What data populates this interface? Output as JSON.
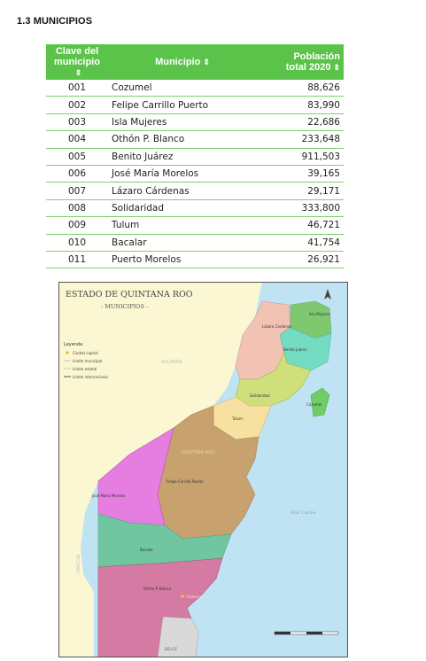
{
  "heading": "1.3 MUNICIPIOS",
  "table": {
    "headers": {
      "clave_line1": "Clave del",
      "clave_line2": "municipio",
      "municipio": "Municipio",
      "poblacion_line1": "Población",
      "poblacion_line2": "total 2020"
    },
    "sort_icon": "sort-icon",
    "rows": [
      {
        "clave": "001",
        "municipio": "Cozumel",
        "poblacion": "88,626"
      },
      {
        "clave": "002",
        "municipio": "Felipe Carrillo Puerto",
        "poblacion": "83,990"
      },
      {
        "clave": "003",
        "municipio": "Isla Mujeres",
        "poblacion": "22,686"
      },
      {
        "clave": "004",
        "municipio": "Othón P. Blanco",
        "poblacion": "233,648"
      },
      {
        "clave": "005",
        "municipio": "Benito Juárez",
        "poblacion": "911,503"
      },
      {
        "clave": "006",
        "municipio": "José María Morelos",
        "poblacion": "39,165"
      },
      {
        "clave": "007",
        "municipio": "Lázaro Cárdenas",
        "poblacion": "29,171"
      },
      {
        "clave": "008",
        "municipio": "Solidaridad",
        "poblacion": "333,800"
      },
      {
        "clave": "009",
        "municipio": "Tulum",
        "poblacion": "46,721"
      },
      {
        "clave": "010",
        "municipio": "Bacalar",
        "poblacion": "41,754"
      },
      {
        "clave": "011",
        "municipio": "Puerto Morelos",
        "poblacion": "26,921"
      }
    ]
  },
  "map": {
    "title": "ESTADO DE QUINTANA ROO",
    "subtitle": "- MUNICIPIOS -",
    "legend": {
      "title": "Leyenda",
      "items": [
        "Ciudad capital",
        "Límite municipal",
        "Límite estatal",
        "Límite internacional"
      ]
    },
    "labels": {
      "isla_mujeres": "Isla Mujeres",
      "lazaro": "Lázaro Cárdenas",
      "benito": "Benito Juárez",
      "yucatan": "YUCATÁN",
      "solidaridad": "Solidaridad",
      "cozumel": "Cozumel",
      "tulum": "Tulum",
      "quintana": "QUINTANA ROO",
      "felipe": "Felipe Carrillo Puerto",
      "jose": "José María Morelos",
      "mar": "Mar Caribe",
      "bacalar": "Bacalar",
      "othon": "Othón P. Blanco",
      "chetumal": "Chetumal",
      "campeche": "CAMPECHE",
      "belice": "BELICE"
    },
    "colors": {
      "sea": "#bfe3f2",
      "land": "#fbf7d2",
      "isla_mujeres": "#7fc870",
      "lazaro": "#f2c2b3",
      "benito": "#74dcc2",
      "solidaridad": "#cfe07a",
      "tulum": "#f6e1a0",
      "felipe": "#c7a16e",
      "jose": "#e57ee0",
      "bacalar": "#6fc6a1",
      "othon": "#d47aa3",
      "cozumel": "#6fcc66",
      "belize": "#d9d9d9"
    }
  }
}
